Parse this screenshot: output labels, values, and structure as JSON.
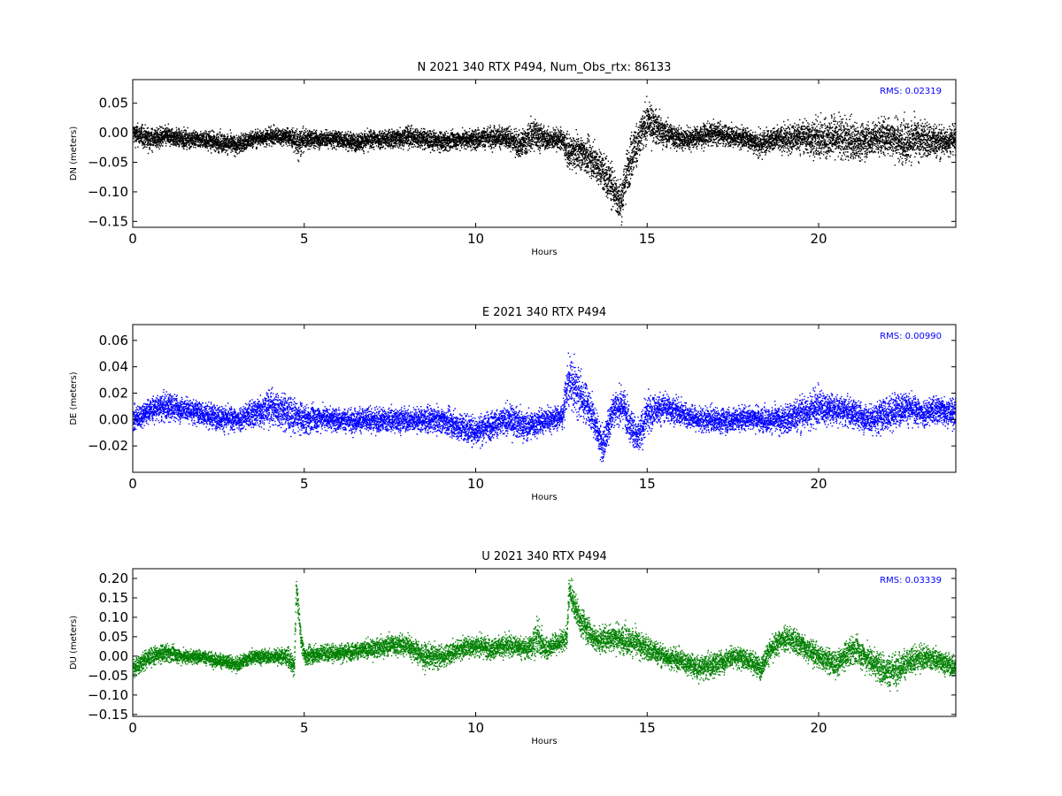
{
  "chart_data": [
    {
      "type": "scatter",
      "title": "N 2021 340 RTX  P494, Num_Obs_rtx: 86133",
      "xlabel": "Hours",
      "ylabel": "DN (meters)",
      "xlim": [
        0,
        24
      ],
      "ylim": [
        -0.16,
        0.09
      ],
      "xticks": [
        0,
        5,
        10,
        15,
        20
      ],
      "xtick_labels": [
        "0",
        "5",
        "10",
        "15",
        "20"
      ],
      "yticks": [
        0.05,
        0.0,
        -0.05,
        -0.1,
        -0.15
      ],
      "ytick_labels": [
        "0.05",
        "0.00",
        "−0.05",
        "−0.10",
        "−0.15"
      ],
      "annotation": "RMS:  0.02319",
      "color": "#000000",
      "grid": false,
      "series": [
        {
          "x": [
            0.0,
            0.5,
            1.0,
            1.5,
            2.0,
            2.5,
            3.0,
            3.5,
            4.0,
            4.5,
            4.7,
            4.8,
            5.0,
            5.5,
            6.0,
            6.5,
            7.0,
            7.5,
            8.0,
            8.5,
            9.0,
            9.5,
            10.0,
            10.5,
            11.0,
            11.3,
            11.7,
            12.0,
            12.5,
            12.7,
            13.0,
            13.5,
            14.0,
            14.2,
            14.5,
            15.0,
            15.5,
            16.0,
            16.5,
            17.0,
            17.5,
            18.0,
            18.3,
            18.5,
            19.0,
            19.5,
            20.0,
            20.5,
            21.0,
            21.5,
            22.0,
            22.5,
            23.0,
            23.5,
            24.0
          ],
          "y": [
            0.0,
            -0.01,
            -0.005,
            -0.01,
            -0.01,
            -0.015,
            -0.02,
            -0.01,
            -0.005,
            -0.005,
            -0.01,
            -0.02,
            -0.01,
            -0.01,
            -0.01,
            -0.015,
            -0.01,
            -0.01,
            -0.005,
            -0.01,
            -0.015,
            -0.01,
            -0.01,
            -0.005,
            -0.01,
            -0.02,
            0.0,
            -0.01,
            -0.01,
            -0.035,
            -0.03,
            -0.05,
            -0.09,
            -0.12,
            -0.04,
            0.02,
            0.0,
            -0.01,
            -0.005,
            0.0,
            -0.005,
            -0.01,
            -0.02,
            -0.01,
            -0.01,
            -0.005,
            -0.01,
            -0.005,
            -0.015,
            -0.01,
            -0.005,
            -0.015,
            -0.01,
            -0.015,
            -0.01
          ],
          "spread": [
            0.02,
            0.02,
            0.018,
            0.016,
            0.016,
            0.018,
            0.018,
            0.016,
            0.016,
            0.016,
            0.02,
            0.03,
            0.018,
            0.016,
            0.016,
            0.016,
            0.018,
            0.018,
            0.02,
            0.018,
            0.018,
            0.016,
            0.02,
            0.02,
            0.02,
            0.025,
            0.03,
            0.02,
            0.02,
            0.03,
            0.03,
            0.035,
            0.04,
            0.04,
            0.045,
            0.035,
            0.025,
            0.02,
            0.02,
            0.02,
            0.02,
            0.02,
            0.025,
            0.02,
            0.025,
            0.03,
            0.035,
            0.04,
            0.035,
            0.03,
            0.035,
            0.04,
            0.035,
            0.03,
            0.025
          ]
        }
      ]
    },
    {
      "type": "scatter",
      "title": "E 2021 340 RTX  P494",
      "xlabel": "Hours",
      "ylabel": "DE (meters)",
      "xlim": [
        0,
        24
      ],
      "ylim": [
        -0.04,
        0.072
      ],
      "xticks": [
        0,
        5,
        10,
        15,
        20
      ],
      "xtick_labels": [
        "0",
        "5",
        "10",
        "15",
        "20"
      ],
      "yticks": [
        0.06,
        0.04,
        0.02,
        0.0,
        -0.02
      ],
      "ytick_labels": [
        "0.06",
        "0.04",
        "0.02",
        "0.00",
        "−0.02"
      ],
      "annotation": "RMS:  0.00990",
      "color": "#0000ff",
      "grid": false,
      "series": [
        {
          "x": [
            0.0,
            0.5,
            1.0,
            1.5,
            2.0,
            2.5,
            3.0,
            3.5,
            4.0,
            4.5,
            5.0,
            5.5,
            6.0,
            6.5,
            7.0,
            7.5,
            8.0,
            8.5,
            9.0,
            9.5,
            10.0,
            10.5,
            11.0,
            11.5,
            12.0,
            12.5,
            12.7,
            13.0,
            13.3,
            13.7,
            14.0,
            14.3,
            14.7,
            15.0,
            15.5,
            16.0,
            16.5,
            17.0,
            17.5,
            18.0,
            18.5,
            19.0,
            19.5,
            20.0,
            20.5,
            21.0,
            21.5,
            22.0,
            22.5,
            23.0,
            23.5,
            24.0
          ],
          "y": [
            0.0,
            0.008,
            0.01,
            0.008,
            0.005,
            0.002,
            0.0,
            0.005,
            0.01,
            0.005,
            0.0,
            0.002,
            0.0,
            0.0,
            0.0,
            0.0,
            0.0,
            0.0,
            0.0,
            -0.005,
            -0.008,
            -0.003,
            0.0,
            -0.005,
            0.0,
            0.003,
            0.03,
            0.02,
            0.01,
            -0.02,
            0.01,
            0.01,
            -0.015,
            0.005,
            0.01,
            0.005,
            0.0,
            0.0,
            0.0,
            0.002,
            0.0,
            0.0,
            0.005,
            0.01,
            0.008,
            0.005,
            0.0,
            0.005,
            0.01,
            0.005,
            0.008,
            0.005
          ],
          "spread": [
            0.01,
            0.01,
            0.012,
            0.01,
            0.01,
            0.01,
            0.01,
            0.012,
            0.015,
            0.015,
            0.012,
            0.01,
            0.01,
            0.01,
            0.01,
            0.01,
            0.01,
            0.01,
            0.01,
            0.012,
            0.012,
            0.012,
            0.012,
            0.012,
            0.01,
            0.01,
            0.02,
            0.02,
            0.015,
            0.015,
            0.015,
            0.015,
            0.015,
            0.015,
            0.012,
            0.01,
            0.01,
            0.01,
            0.01,
            0.01,
            0.01,
            0.012,
            0.015,
            0.015,
            0.012,
            0.012,
            0.012,
            0.015,
            0.012,
            0.012,
            0.012,
            0.012
          ]
        }
      ]
    },
    {
      "type": "scatter",
      "title": "U 2021 340 RTX  P494",
      "xlabel": "Hours",
      "ylabel": "DU (meters)",
      "xlim": [
        0,
        24
      ],
      "ylim": [
        -0.155,
        0.225
      ],
      "xticks": [
        0,
        5,
        10,
        15,
        20
      ],
      "xtick_labels": [
        "0",
        "5",
        "10",
        "15",
        "20"
      ],
      "yticks": [
        0.2,
        0.15,
        0.1,
        0.05,
        0.0,
        -0.05,
        -0.1,
        -0.15
      ],
      "ytick_labels": [
        "0.20",
        "0.15",
        "0.10",
        "0.05",
        "0.00",
        "−0.05",
        "−0.10",
        "−0.15"
      ],
      "annotation": "RMS:  0.03339",
      "color": "#008000",
      "grid": false,
      "series": [
        {
          "x": [
            0.0,
            0.5,
            1.0,
            1.5,
            2.0,
            2.5,
            3.0,
            3.5,
            4.0,
            4.5,
            4.7,
            4.75,
            4.9,
            5.0,
            5.5,
            6.0,
            6.5,
            7.0,
            7.5,
            8.0,
            8.5,
            9.0,
            9.5,
            10.0,
            10.5,
            11.0,
            11.5,
            11.8,
            12.0,
            12.5,
            12.65,
            12.7,
            13.0,
            13.5,
            14.0,
            14.5,
            15.0,
            15.5,
            16.0,
            16.5,
            17.0,
            17.5,
            18.0,
            18.3,
            18.5,
            19.0,
            19.5,
            20.0,
            20.5,
            21.0,
            21.5,
            22.0,
            22.5,
            23.0,
            23.5,
            24.0
          ],
          "y": [
            -0.03,
            0.0,
            0.01,
            0.0,
            0.0,
            -0.01,
            -0.02,
            0.0,
            0.0,
            0.0,
            -0.03,
            0.18,
            0.04,
            0.0,
            0.01,
            0.01,
            0.015,
            0.02,
            0.03,
            0.03,
            0.0,
            0.0,
            0.02,
            0.03,
            0.02,
            0.03,
            0.02,
            0.05,
            0.02,
            0.04,
            0.05,
            0.17,
            0.1,
            0.04,
            0.05,
            0.04,
            0.02,
            0.0,
            -0.01,
            -0.03,
            -0.02,
            0.0,
            -0.01,
            -0.03,
            0.01,
            0.05,
            0.03,
            0.0,
            -0.02,
            0.02,
            -0.01,
            -0.04,
            -0.02,
            0.0,
            -0.01,
            -0.03
          ],
          "spread": [
            0.03,
            0.025,
            0.025,
            0.02,
            0.02,
            0.02,
            0.02,
            0.02,
            0.02,
            0.025,
            0.03,
            0.03,
            0.025,
            0.025,
            0.025,
            0.025,
            0.025,
            0.025,
            0.03,
            0.03,
            0.035,
            0.03,
            0.03,
            0.03,
            0.03,
            0.03,
            0.03,
            0.05,
            0.03,
            0.03,
            0.03,
            0.04,
            0.04,
            0.035,
            0.04,
            0.04,
            0.035,
            0.03,
            0.03,
            0.035,
            0.035,
            0.03,
            0.03,
            0.03,
            0.03,
            0.04,
            0.035,
            0.035,
            0.035,
            0.04,
            0.04,
            0.05,
            0.04,
            0.035,
            0.03,
            0.03
          ]
        }
      ]
    }
  ]
}
